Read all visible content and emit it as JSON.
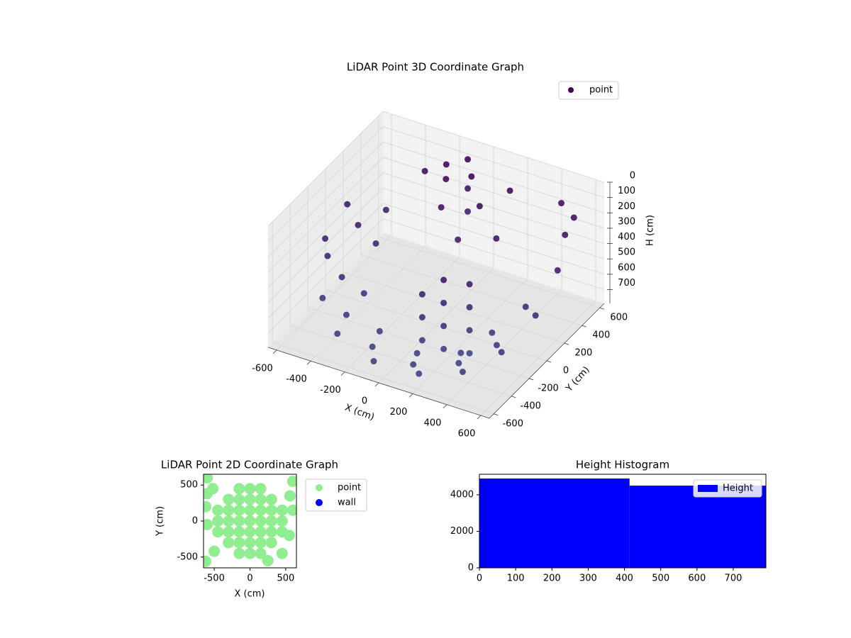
{
  "chart_data": [
    {
      "type": "scatter3d",
      "title": "LiDAR Point 3D Coordinate Graph",
      "xlabel": "X (cm)",
      "ylabel": "Y (cm)",
      "zlabel": "H (cm)",
      "xlim": [
        -650,
        650
      ],
      "ylim": [
        -650,
        650
      ],
      "zlim": [
        0,
        790
      ],
      "z_inverted": true,
      "xticks": [
        -600,
        -400,
        -200,
        0,
        200,
        400,
        600
      ],
      "yticks": [
        -600,
        -400,
        -200,
        0,
        200,
        400,
        600
      ],
      "zticks": [
        0,
        100,
        200,
        300,
        400,
        500,
        600,
        700
      ],
      "legend": "upper right",
      "series": [
        {
          "name": "point",
          "color": "#440154",
          "color_far": "#3e4a89",
          "x": [
            -600,
            -560,
            -470,
            -300,
            -50,
            200,
            400,
            540,
            610,
            610,
            560,
            -500,
            -450,
            -330,
            -120,
            120,
            330,
            460,
            500,
            -380,
            -320,
            -150,
            80,
            280,
            370,
            200,
            200,
            200,
            200,
            300,
            300,
            300,
            300,
            100,
            100,
            100,
            0,
            100,
            -100,
            200,
            50,
            250,
            -150,
            -200,
            -300,
            450,
            550,
            -600,
            -450,
            -100,
            -100,
            -100
          ],
          "y": [
            150,
            -150,
            -380,
            -540,
            -610,
            -580,
            -470,
            -300,
            -50,
            200,
            380,
            80,
            -200,
            -380,
            -490,
            -490,
            -380,
            -200,
            50,
            50,
            -200,
            -350,
            -370,
            -260,
            -80,
            -300,
            -300,
            -300,
            -300,
            -200,
            -200,
            -200,
            -200,
            -350,
            -350,
            -350,
            400,
            300,
            250,
            450,
            150,
            200,
            400,
            500,
            450,
            550,
            500,
            -100,
            300,
            550,
            550,
            550
          ],
          "z": [
            300,
            450,
            560,
            640,
            690,
            700,
            680,
            600,
            480,
            330,
            220,
            360,
            520,
            620,
            690,
            720,
            700,
            640,
            520,
            420,
            580,
            680,
            730,
            720,
            660,
            250,
            400,
            550,
            700,
            300,
            450,
            600,
            750,
            350,
            500,
            650,
            50,
            150,
            200,
            100,
            300,
            250,
            120,
            100,
            150,
            150,
            180,
            380,
            370,
            60,
            250,
            400
          ]
        }
      ]
    },
    {
      "type": "scatter",
      "title": "LiDAR Point 2D Coordinate Graph",
      "xlabel": "X (cm)",
      "ylabel": "Y (cm)",
      "xlim": [
        -650,
        650
      ],
      "ylim": [
        -650,
        650
      ],
      "xticks": [
        -500,
        0,
        500
      ],
      "yticks": [
        -500,
        0,
        500
      ],
      "legend": "outside right",
      "series": [
        {
          "name": "point",
          "color": "#90ee90",
          "x": [
            -450,
            -450,
            -450,
            -300,
            -300,
            -300,
            -300,
            -300,
            -150,
            -150,
            -150,
            -150,
            -150,
            -150,
            -150,
            0,
            0,
            0,
            0,
            0,
            0,
            0,
            150,
            150,
            150,
            150,
            150,
            150,
            150,
            300,
            300,
            300,
            300,
            300,
            450,
            450,
            450,
            -600,
            -520,
            -600,
            600,
            560,
            600,
            -620,
            -500,
            -600,
            550,
            450,
            250,
            -620
          ],
          "y": [
            -150,
            0,
            150,
            -300,
            -150,
            0,
            150,
            300,
            -450,
            -300,
            -150,
            0,
            150,
            300,
            450,
            -450,
            -300,
            -150,
            0,
            150,
            300,
            450,
            -450,
            -300,
            -150,
            0,
            150,
            300,
            450,
            -300,
            -150,
            0,
            150,
            300,
            -150,
            0,
            150,
            600,
            450,
            380,
            550,
            350,
            150,
            -560,
            -420,
            -50,
            -200,
            -450,
            -550,
            200
          ]
        },
        {
          "name": "wall",
          "color": "#0000ff",
          "x": [],
          "y": []
        }
      ]
    },
    {
      "type": "histogram",
      "title": "Height Histogram",
      "name": "Height",
      "bins": [
        0,
        414,
        790
      ],
      "values": [
        4890,
        4500
      ],
      "color": "#0000ff",
      "xlim": [
        0,
        790
      ],
      "ylim": [
        0,
        5125
      ],
      "xticks": [
        0,
        100,
        200,
        300,
        400,
        500,
        600,
        700
      ],
      "yticks": [
        0,
        2000,
        4000
      ],
      "legend": "upper right"
    }
  ]
}
